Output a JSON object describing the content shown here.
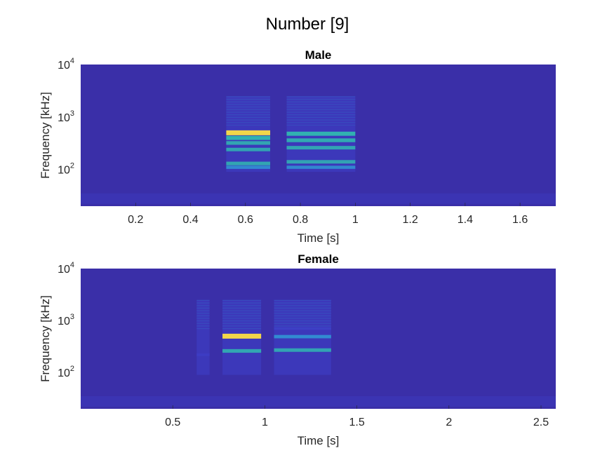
{
  "figure": {
    "title": "Number [9]"
  },
  "colors": {
    "background": "#3a2fa8",
    "low": "#3e3fc8",
    "mid": "#2fa6d8",
    "high": "#30c2b0",
    "peak": "#f2d64a",
    "axis": "#262626"
  },
  "chart_data": [
    {
      "type": "heatmap",
      "title": "Male",
      "xlabel": "Time [s]",
      "ylabel": "Frequency [kHz]",
      "yscale": "log",
      "xlim": [
        0.0,
        1.73
      ],
      "ylim": [
        20,
        10000
      ],
      "xticks": [
        0.2,
        0.4,
        0.6,
        0.8,
        1,
        1.2,
        1.4,
        1.6
      ],
      "xtick_labels": [
        "0.2",
        "0.4",
        "0.6",
        "0.8",
        "1",
        "1.2",
        "1.4",
        "1.6"
      ],
      "yticks": [
        100,
        1000,
        10000
      ],
      "ytick_labels": [
        {
          "base": "10",
          "exp": "2"
        },
        {
          "base": "10",
          "exp": "3"
        },
        {
          "base": "10",
          "exp": "4"
        }
      ],
      "segments": [
        {
          "t0": 0.53,
          "t1": 0.69,
          "bands": [
            {
              "f": 500,
              "level": 1.0
            },
            {
              "f": 400,
              "level": 0.72
            },
            {
              "f": 320,
              "level": 0.55
            },
            {
              "f": 240,
              "level": 0.5
            },
            {
              "f": 130,
              "level": 0.55
            },
            {
              "f": 110,
              "level": 0.4
            }
          ]
        },
        {
          "t0": 0.75,
          "t1": 1.0,
          "bands": [
            {
              "f": 480,
              "level": 0.72
            },
            {
              "f": 360,
              "level": 0.6
            },
            {
              "f": 260,
              "level": 0.5
            },
            {
              "f": 140,
              "level": 0.5
            },
            {
              "f": 110,
              "level": 0.38
            }
          ]
        }
      ]
    },
    {
      "type": "heatmap",
      "title": "Female",
      "xlabel": "Time [s]",
      "ylabel": "Frequency [kHz]",
      "yscale": "log",
      "xlim": [
        0.0,
        2.58
      ],
      "ylim": [
        20,
        10000
      ],
      "xticks": [
        0.5,
        1,
        1.5,
        2,
        2.5
      ],
      "xtick_labels": [
        "0.5",
        "1",
        "1.5",
        "2",
        "2.5"
      ],
      "yticks": [
        100,
        1000,
        10000
      ],
      "ytick_labels": [
        {
          "base": "10",
          "exp": "2"
        },
        {
          "base": "10",
          "exp": "3"
        },
        {
          "base": "10",
          "exp": "4"
        }
      ],
      "segments": [
        {
          "t0": 0.77,
          "t1": 0.98,
          "bands": [
            {
              "f": 500,
              "level": 1.0
            },
            {
              "f": 260,
              "level": 0.55
            }
          ]
        },
        {
          "t0": 1.05,
          "t1": 1.36,
          "bands": [
            {
              "f": 700,
              "level": 0.3
            },
            {
              "f": 490,
              "level": 0.45
            },
            {
              "f": 270,
              "level": 0.5
            }
          ]
        },
        {
          "t0": 0.63,
          "t1": 0.7,
          "bands": [
            {
              "f": 220,
              "level": 0.22
            }
          ]
        }
      ]
    }
  ]
}
